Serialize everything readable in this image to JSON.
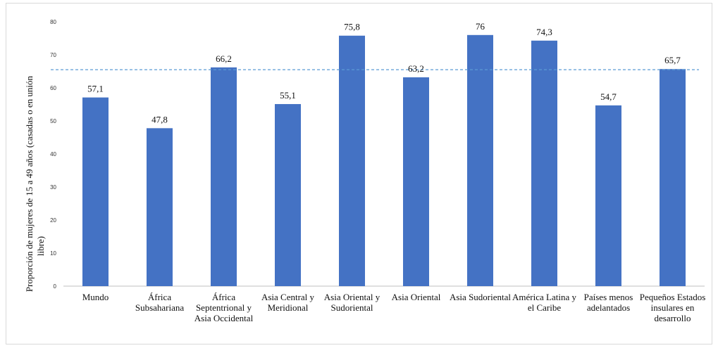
{
  "chart_data": {
    "type": "bar",
    "ylabel": "Proporción de mujeres de 15 a 49 años (casadas o en unión libre)",
    "ylim": [
      0,
      80
    ],
    "yticks": [
      0,
      10,
      20,
      30,
      40,
      50,
      60,
      70,
      80
    ],
    "categories": [
      "Mundo",
      "África Subsahariana",
      "África Septentrional y Asia Occidental",
      "Asia Central y Meridional",
      "Asia Oriental y Sudoriental",
      "Asia Oriental",
      "Asia Sudoriental",
      "América Latina y el Caribe",
      "Países menos adelantados",
      "Pequeños Estados insulares en desarrollo"
    ],
    "values": [
      57.1,
      47.8,
      66.2,
      55.1,
      75.8,
      63.2,
      76,
      74.3,
      54.7,
      65.7
    ],
    "data_labels": [
      "57,1",
      "47,8",
      "66,2",
      "55,1",
      "75,8",
      "63,2",
      "76",
      "74,3",
      "54,7",
      "65,7"
    ],
    "reference_line": {
      "value": 65.5,
      "style": "dashed"
    },
    "colors": {
      "bar": "#4472c4",
      "reference": "#5b9bd5",
      "axis": "#bfbfbf"
    }
  }
}
